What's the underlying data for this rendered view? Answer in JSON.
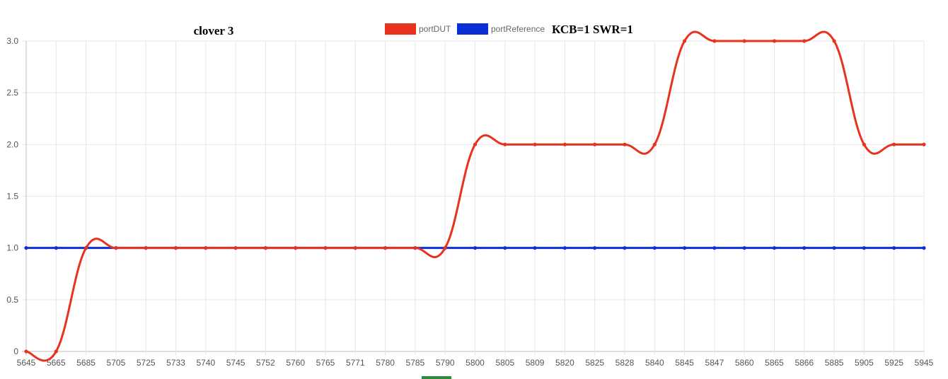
{
  "chart_data": {
    "type": "line",
    "title": "clover 3",
    "annotation": "КСВ=1 SWR=1",
    "categories": [
      "5645",
      "5665",
      "5685",
      "5705",
      "5725",
      "5733",
      "5740",
      "5745",
      "5752",
      "5760",
      "5765",
      "5771",
      "5780",
      "5785",
      "5790",
      "5800",
      "5805",
      "5809",
      "5820",
      "5825",
      "5828",
      "5840",
      "5845",
      "5847",
      "5860",
      "5865",
      "5866",
      "5885",
      "5905",
      "5925",
      "5945"
    ],
    "series": [
      {
        "name": "portDUT",
        "color": "#e8321e",
        "values": [
          0,
          0,
          1,
          1,
          1,
          1,
          1,
          1,
          1,
          1,
          1,
          1,
          1,
          1,
          1,
          2,
          2,
          2,
          2,
          2,
          2,
          2,
          3,
          3,
          3,
          3,
          3,
          3,
          2,
          2,
          2
        ]
      },
      {
        "name": "portReference",
        "color": "#0b2fd6",
        "values": [
          1,
          1,
          1,
          1,
          1,
          1,
          1,
          1,
          1,
          1,
          1,
          1,
          1,
          1,
          1,
          1,
          1,
          1,
          1,
          1,
          1,
          1,
          1,
          1,
          1,
          1,
          1,
          1,
          1,
          1,
          1
        ]
      }
    ],
    "ylim": [
      0,
      3
    ],
    "yticks": [
      "0",
      "0.5",
      "1.0",
      "1.5",
      "2.0",
      "2.5",
      "3.0"
    ],
    "grid": true,
    "legend_position": "top-center"
  }
}
